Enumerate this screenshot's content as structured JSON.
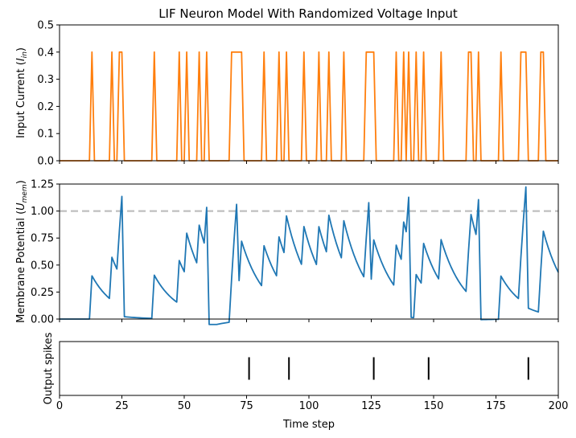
{
  "chart_data": [
    {
      "type": "line",
      "title": "LIF Neuron Model With Randomized Voltage Input",
      "ylabel_main": "Input Current (",
      "ylabel_sym": "I",
      "ylabel_sub": "in",
      "ylabel_close": ")",
      "xlim": [
        0,
        200
      ],
      "ylim": [
        0,
        0.5
      ],
      "yticks": [
        0.0,
        0.1,
        0.2,
        0.3,
        0.4,
        0.5
      ],
      "ytick_labels": [
        "0.0",
        "0.1",
        "0.2",
        "0.3",
        "0.4",
        "0.5"
      ],
      "line_color": "#ff7f0e",
      "pulse_value": 0.4,
      "pulse_steps": [
        13,
        21,
        24,
        25,
        38,
        48,
        51,
        56,
        59,
        69,
        70,
        71,
        72,
        73,
        82,
        88,
        91,
        98,
        104,
        108,
        114,
        123,
        124,
        125,
        126,
        135,
        138,
        140,
        143,
        146,
        153,
        164,
        165,
        168,
        177,
        185,
        186,
        187,
        193,
        194
      ]
    },
    {
      "type": "line",
      "ylabel_main": "Membrane Potential (",
      "ylabel_sym": "U",
      "ylabel_sub": "mem",
      "ylabel_close": ")",
      "xlim": [
        0,
        200
      ],
      "ylim": [
        0,
        1.25
      ],
      "yticks": [
        0.0,
        0.25,
        0.5,
        0.75,
        1.0,
        1.25
      ],
      "ytick_labels": [
        "0.00",
        "0.25",
        "0.50",
        "0.75",
        "1.00",
        "1.25"
      ],
      "threshold": 1.0,
      "threshold_color": "#bfbfbf",
      "line_color": "#1f77b4",
      "beta": 0.9,
      "input_scale": 1.0,
      "reset_value": 1.0
    },
    {
      "type": "scatter",
      "ylabel": "Output spikes",
      "xlabel": "Time step",
      "xlim": [
        0,
        200
      ],
      "xticks": [
        0,
        25,
        50,
        75,
        100,
        125,
        150,
        175,
        200
      ],
      "xtick_labels": [
        "0",
        "25",
        "50",
        "75",
        "100",
        "125",
        "150",
        "175",
        "200"
      ],
      "spike_times": [
        76,
        92,
        126,
        148,
        188
      ],
      "marker_color": "#000000"
    }
  ]
}
